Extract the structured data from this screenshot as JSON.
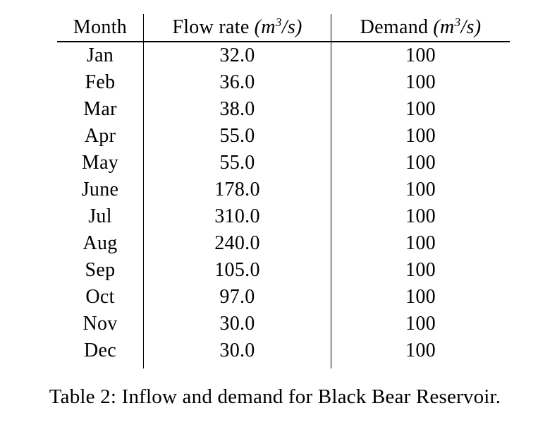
{
  "table": {
    "headers": {
      "month": "Month",
      "flow_label": "Flow rate",
      "flow_unit_open": "(m",
      "flow_unit_sup": "3",
      "flow_unit_close": "/s)",
      "demand_label": "Demand",
      "demand_unit_open": "(m",
      "demand_unit_sup": "3",
      "demand_unit_close": "/s)"
    },
    "rows": [
      {
        "month": "Jan",
        "flow": "32.0",
        "demand": "100"
      },
      {
        "month": "Feb",
        "flow": "36.0",
        "demand": "100"
      },
      {
        "month": "Mar",
        "flow": "38.0",
        "demand": "100"
      },
      {
        "month": "Apr",
        "flow": "55.0",
        "demand": "100"
      },
      {
        "month": "May",
        "flow": "55.0",
        "demand": "100"
      },
      {
        "month": "June",
        "flow": "178.0",
        "demand": "100"
      },
      {
        "month": "Jul",
        "flow": "310.0",
        "demand": "100"
      },
      {
        "month": "Aug",
        "flow": "240.0",
        "demand": "100"
      },
      {
        "month": "Sep",
        "flow": "105.0",
        "demand": "100"
      },
      {
        "month": "Oct",
        "flow": "97.0",
        "demand": "100"
      },
      {
        "month": "Nov",
        "flow": "30.0",
        "demand": "100"
      },
      {
        "month": "Dec",
        "flow": "30.0",
        "demand": "100"
      }
    ],
    "caption": "Table 2: Inflow and demand for Black Bear Reservoir.",
    "text_color": "#000000",
    "background_color": "#ffffff"
  }
}
